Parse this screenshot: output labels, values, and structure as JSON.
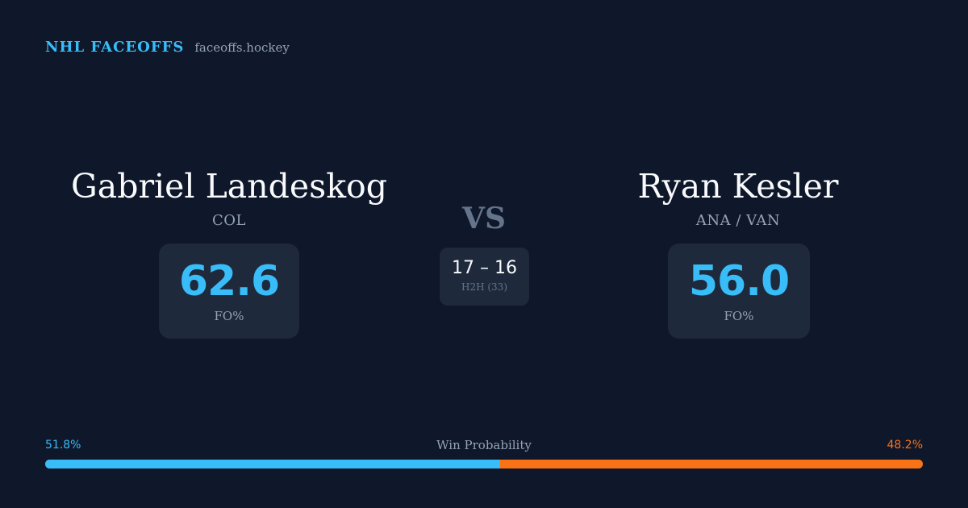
{
  "brand": {
    "name": "NHL FACEOFFS",
    "url": "faceoffs.hockey"
  },
  "colors": {
    "background": "#0f172a",
    "card": "#1e293b",
    "accent_blue": "#38bdf8",
    "accent_orange": "#f97316"
  },
  "player_left": {
    "name": "Gabriel Landeskog",
    "team": "COL",
    "stat_value": "62.6",
    "stat_label": "FO%"
  },
  "player_right": {
    "name": "Ryan Kesler",
    "team": "ANA / VAN",
    "stat_value": "56.0",
    "stat_label": "FO%"
  },
  "versus": "VS",
  "head_to_head": {
    "score": "17 – 16",
    "label": "H2H (33)"
  },
  "win_probability": {
    "title": "Win Probability",
    "left_label": "51.8%",
    "right_label": "48.2%",
    "left_fraction": 0.518,
    "right_fraction": 0.482
  }
}
